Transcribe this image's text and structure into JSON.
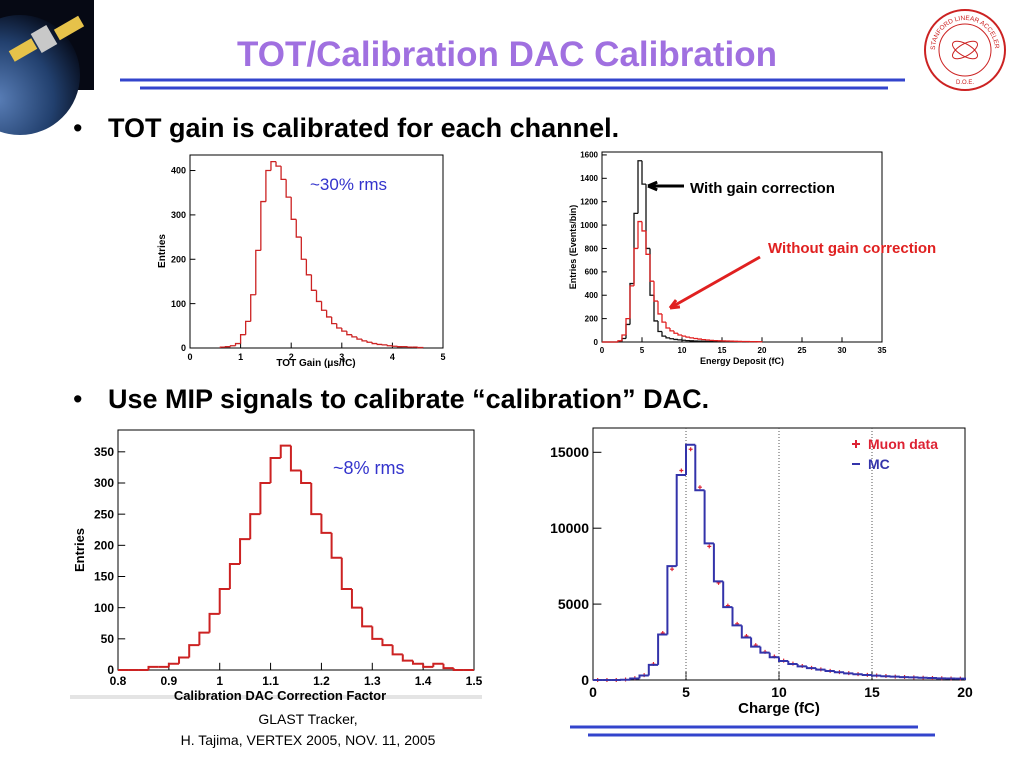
{
  "title": "TOT/Calibration DAC Calibration",
  "bullets": [
    "TOT gain is calibrated for each channel.",
    "Use MIP signals to calibrate “calibration” DAC."
  ],
  "footer": [
    "GLAST Tracker,",
    "H. Tajima, VERTEX 2005, NOV. 11, 2005"
  ],
  "seal": {
    "text": "STANFORD LINEAR ACCELERATOR CENTER",
    "bottom": "D.O.E."
  },
  "chart_data": [
    {
      "type": "histogram",
      "xlabel": "TOT Gain (μs/fC)",
      "ylabel": "Entries",
      "annotation": "~30% rms",
      "bins": [
        0.6,
        0.7,
        0.8,
        0.9,
        1.0,
        1.1,
        1.2,
        1.3,
        1.4,
        1.5,
        1.6,
        1.7,
        1.8,
        1.9,
        2.0,
        2.1,
        2.2,
        2.3,
        2.4,
        2.5,
        2.6,
        2.7,
        2.8,
        2.9,
        3.0,
        3.1,
        3.2,
        3.3,
        3.4,
        3.5,
        3.6,
        3.7,
        3.8,
        3.9,
        4.0,
        4.1,
        4.2,
        4.3,
        4.4,
        4.5,
        4.6
      ],
      "series": [
        {
          "color": "#cc2222",
          "values": [
            2,
            3,
            5,
            10,
            30,
            60,
            120,
            220,
            330,
            400,
            420,
            410,
            380,
            340,
            290,
            250,
            200,
            165,
            130,
            105,
            85,
            70,
            55,
            45,
            38,
            30,
            25,
            20,
            16,
            13,
            10,
            8,
            7,
            5,
            4,
            3,
            3,
            2,
            2,
            1
          ]
        }
      ],
      "xlim": [
        0,
        5
      ],
      "ylim": [
        0,
        435
      ],
      "xticks": [
        0,
        1,
        2,
        3,
        4,
        5
      ],
      "yticks": [
        0,
        100,
        200,
        300,
        400
      ]
    },
    {
      "type": "histogram",
      "xlabel": "Energy Deposit (fC)",
      "ylabel": "Entries (Events/bin)",
      "bins": [
        0,
        0.5,
        1,
        1.5,
        2,
        2.5,
        3,
        3.5,
        4,
        4.5,
        5,
        5.5,
        6,
        6.5,
        7,
        7.5,
        8,
        8.5,
        9,
        9.5,
        10,
        10.5,
        11,
        11.5,
        12,
        12.5,
        13,
        13.5,
        14,
        14.5,
        15,
        15.5,
        16,
        16.5,
        17,
        17.5,
        18,
        18.5,
        19,
        19.5,
        20
      ],
      "series": [
        {
          "name": "With gain correction",
          "color": "#111111",
          "values": [
            0,
            0,
            0,
            0,
            5,
            30,
            150,
            500,
            1100,
            1550,
            1350,
            800,
            400,
            180,
            90,
            50,
            35,
            28,
            22,
            18,
            15,
            12,
            10,
            8,
            7,
            6,
            5,
            4,
            4,
            3,
            3,
            2,
            2,
            2,
            1,
            1,
            1,
            1,
            1,
            1
          ]
        },
        {
          "name": "Without gain correction",
          "color": "#e02020",
          "values": [
            0,
            0,
            0,
            0,
            10,
            60,
            200,
            480,
            800,
            1030,
            950,
            750,
            520,
            350,
            240,
            170,
            120,
            95,
            75,
            60,
            50,
            42,
            35,
            30,
            25,
            20,
            17,
            14,
            12,
            10,
            9,
            8,
            7,
            6,
            5,
            4,
            4,
            3,
            3,
            2
          ]
        }
      ],
      "xlim": [
        0,
        35
      ],
      "ylim": [
        0,
        1625
      ],
      "xticks": [
        0,
        5,
        10,
        15,
        20,
        25,
        30,
        35
      ],
      "yticks": [
        0,
        200,
        400,
        600,
        800,
        1000,
        1200,
        1400,
        1600
      ]
    },
    {
      "type": "histogram",
      "xlabel": "Calibration DAC Correction Factor",
      "ylabel": "Entries",
      "annotation": "~8% rms",
      "bins": [
        0.8,
        0.82,
        0.84,
        0.86,
        0.88,
        0.9,
        0.92,
        0.94,
        0.96,
        0.98,
        1.0,
        1.02,
        1.04,
        1.06,
        1.08,
        1.1,
        1.12,
        1.14,
        1.16,
        1.18,
        1.2,
        1.22,
        1.24,
        1.26,
        1.28,
        1.3,
        1.32,
        1.34,
        1.36,
        1.38,
        1.4,
        1.42,
        1.44,
        1.46,
        1.48,
        1.5
      ],
      "series": [
        {
          "color": "#cc2222",
          "values": [
            0,
            0,
            0,
            5,
            5,
            10,
            20,
            40,
            60,
            90,
            130,
            170,
            210,
            250,
            300,
            340,
            360,
            320,
            300,
            250,
            220,
            180,
            130,
            100,
            70,
            50,
            40,
            25,
            15,
            10,
            5,
            10,
            3,
            0,
            0
          ]
        }
      ],
      "xlim": [
        0.8,
        1.5
      ],
      "ylim": [
        0,
        385
      ],
      "xticks": [
        0.8,
        0.9,
        1,
        1.1,
        1.2,
        1.3,
        1.4,
        1.5
      ],
      "yticks": [
        0,
        50,
        100,
        150,
        200,
        250,
        300,
        350
      ]
    },
    {
      "type": "histogram",
      "xlabel": "Charge (fC)",
      "grid": true,
      "bins": [
        0,
        0.5,
        1,
        1.5,
        2,
        2.5,
        3,
        3.5,
        4,
        4.5,
        5,
        5.5,
        6,
        6.5,
        7,
        7.5,
        8,
        8.5,
        9,
        9.5,
        10,
        10.5,
        11,
        11.5,
        12,
        12.5,
        13,
        13.5,
        14,
        14.5,
        15,
        15.5,
        16,
        16.5,
        17,
        17.5,
        18,
        18.5,
        19,
        19.5,
        20
      ],
      "series": [
        {
          "name": "Muon data",
          "color": "#dd2233",
          "marker": "+",
          "values": [
            0,
            0,
            0,
            30,
            120,
            320,
            1050,
            3100,
            7300,
            13800,
            15200,
            12700,
            8800,
            6400,
            4900,
            3700,
            2900,
            2300,
            1850,
            1550,
            1280,
            1080,
            920,
            800,
            700,
            600,
            520,
            450,
            390,
            340,
            300,
            260,
            225,
            195,
            175,
            150,
            130,
            115,
            100,
            90
          ]
        },
        {
          "name": "MC",
          "color": "#3333aa",
          "values": [
            0,
            0,
            0,
            20,
            100,
            300,
            1000,
            3000,
            7500,
            13500,
            15500,
            12500,
            9000,
            6500,
            4800,
            3600,
            2800,
            2200,
            1800,
            1500,
            1250,
            1050,
            900,
            780,
            680,
            590,
            510,
            440,
            380,
            330,
            290,
            250,
            220,
            190,
            170,
            150,
            130,
            110,
            100,
            90
          ]
        }
      ],
      "xlim": [
        0,
        20
      ],
      "ylim": [
        0,
        16600
      ],
      "xticks": [
        0,
        5,
        10,
        15,
        20
      ],
      "yticks": [
        0,
        5000,
        10000,
        15000
      ]
    }
  ]
}
